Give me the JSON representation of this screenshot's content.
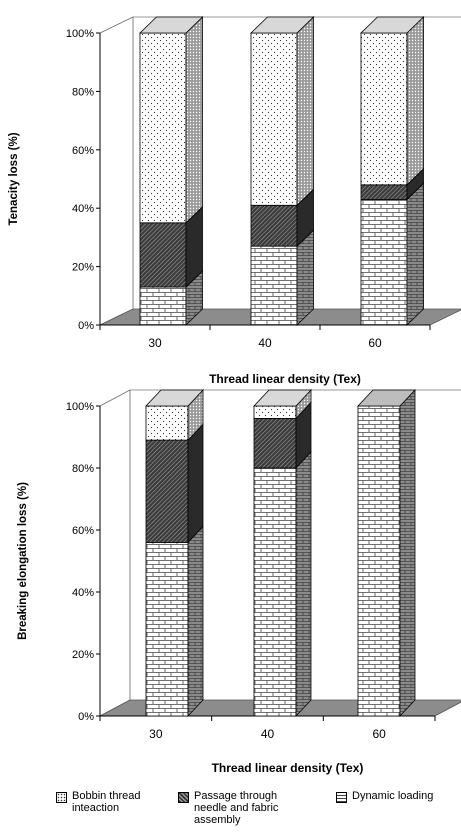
{
  "legend": [
    {
      "label": "Bobbin thread\ninteaction",
      "pattern": "dots"
    },
    {
      "label": "Passage through\nneedle and fabric\nassembly",
      "pattern": "dark"
    },
    {
      "label": "Dynamic loading",
      "pattern": "brick"
    }
  ],
  "chart_data": [
    {
      "type": "bar",
      "stacked": true,
      "three_d": true,
      "xlabel": "Thread linear density (Tex)",
      "ylabel": "Tenacity loss (%)",
      "categories": [
        "30",
        "40",
        "60"
      ],
      "ylim": [
        0,
        100
      ],
      "yticks": [
        "0%",
        "20%",
        "40%",
        "60%",
        "80%",
        "100%"
      ],
      "series": [
        {
          "name": "Dynamic loading",
          "pattern": "brick",
          "values": [
            13,
            27,
            43
          ]
        },
        {
          "name": "Passage through needle and fabric assembly",
          "pattern": "dark",
          "values": [
            22,
            14,
            5
          ]
        },
        {
          "name": "Bobbin thread inteaction",
          "pattern": "dots",
          "values": [
            65,
            59,
            52
          ]
        }
      ]
    },
    {
      "type": "bar",
      "stacked": true,
      "three_d": true,
      "xlabel": "Thread linear density (Tex)",
      "ylabel": "Breaking elongation loss (%)",
      "categories": [
        "30",
        "40",
        "60"
      ],
      "ylim": [
        0,
        100
      ],
      "yticks": [
        "0%",
        "20%",
        "40%",
        "60%",
        "80%",
        "100%"
      ],
      "series": [
        {
          "name": "Dynamic loading",
          "pattern": "brick",
          "values": [
            56,
            80,
            100
          ]
        },
        {
          "name": "Passage through needle and fabric assembly",
          "pattern": "dark",
          "values": [
            33,
            16,
            0
          ]
        },
        {
          "name": "Bobbin thread inteaction",
          "pattern": "dots",
          "values": [
            11,
            4,
            0
          ]
        }
      ]
    }
  ]
}
